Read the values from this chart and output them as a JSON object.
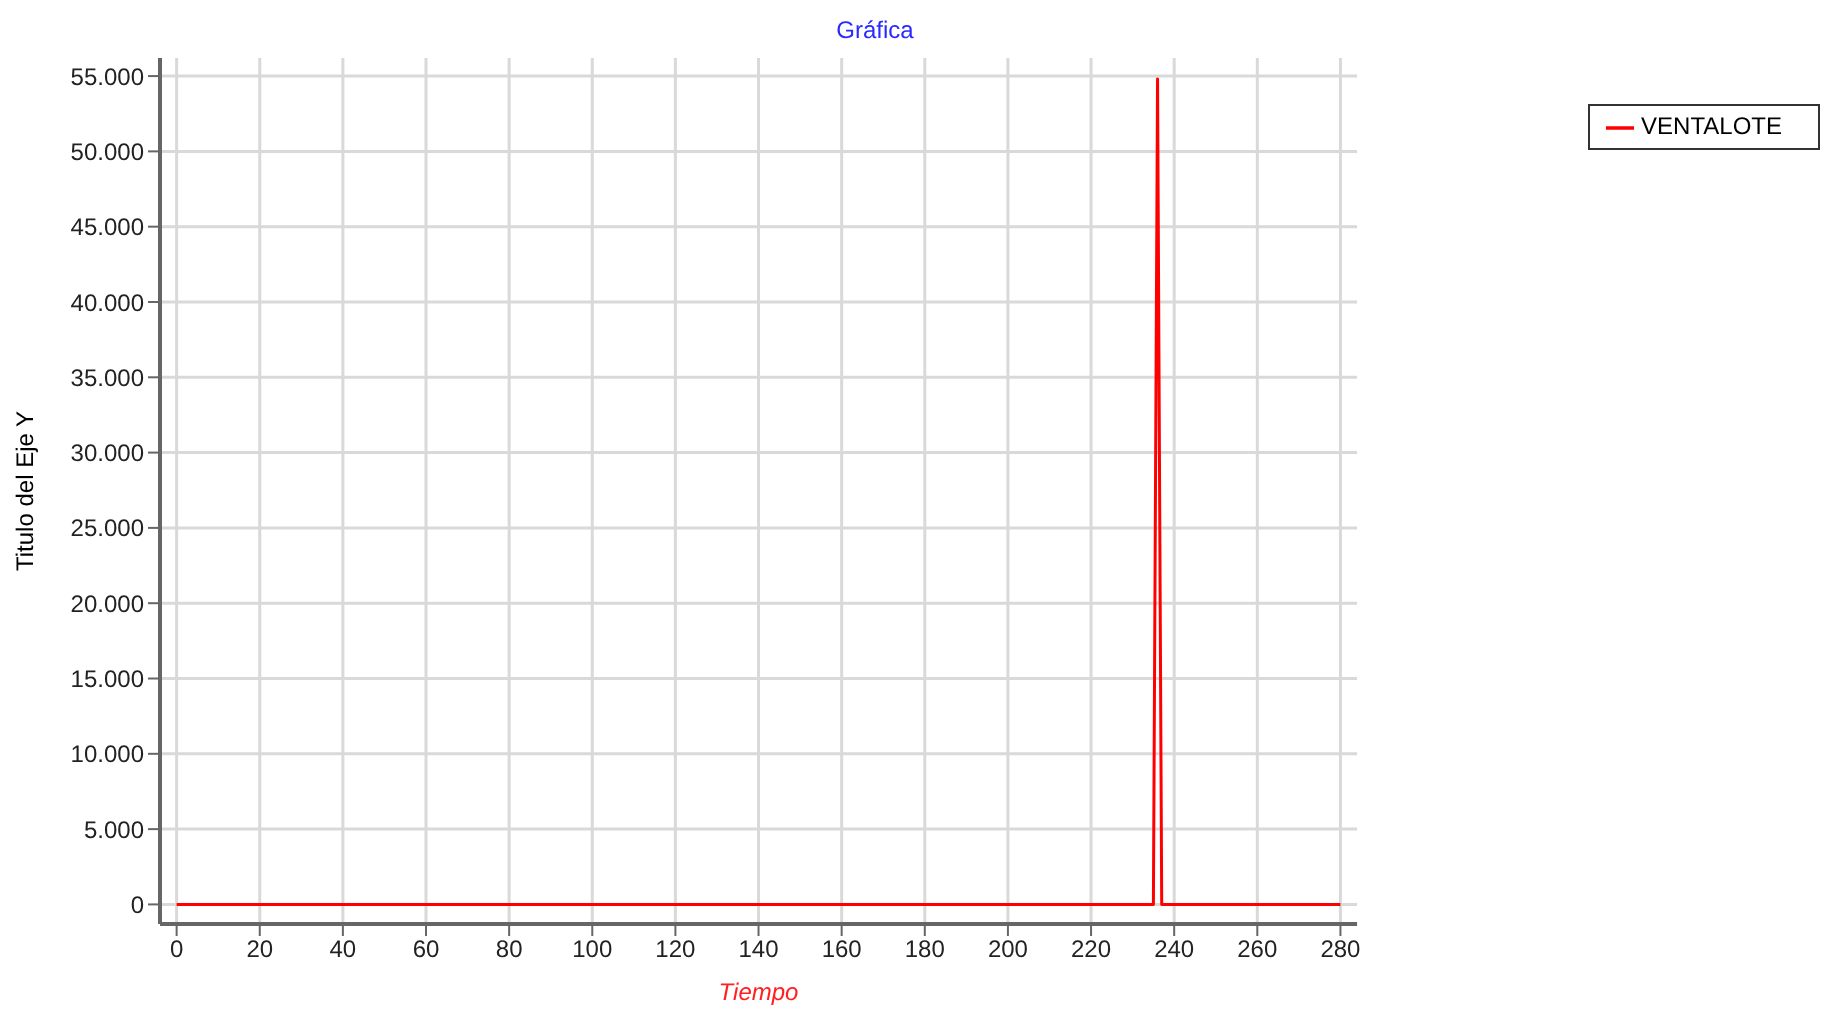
{
  "chart_data": {
    "type": "line",
    "title": "Gráfica",
    "xlabel": "Tiempo",
    "ylabel": "Titulo del Eje Y",
    "x": [
      0,
      235,
      236,
      237,
      280
    ],
    "series": [
      {
        "name": "VENTALOTE",
        "color": "#ff0000",
        "values": [
          0,
          0,
          54800,
          0,
          0
        ]
      }
    ],
    "xlim": [
      -4,
      284
    ],
    "xticks": [
      0,
      20,
      40,
      60,
      80,
      100,
      120,
      140,
      160,
      180,
      200,
      220,
      240,
      260,
      280
    ],
    "ylim": [
      -1300,
      56200
    ],
    "yticks": [
      0,
      {
        "value": 5000,
        "label": "5.000"
      },
      {
        "value": 10000,
        "label": "10.000"
      },
      {
        "value": 15000,
        "label": "15.000"
      },
      {
        "value": 20000,
        "label": "20.000"
      },
      {
        "value": 25000,
        "label": "25.000"
      },
      {
        "value": 30000,
        "label": "30.000"
      },
      {
        "value": 35000,
        "label": "35.000"
      },
      {
        "value": 40000,
        "label": "40.000"
      },
      {
        "value": 45000,
        "label": "45.000"
      },
      {
        "value": 50000,
        "label": "50.000"
      },
      {
        "value": 55000,
        "label": "55.000"
      }
    ],
    "grid": true,
    "legend": "top right",
    "marker": "none",
    "line_style": "solid"
  }
}
